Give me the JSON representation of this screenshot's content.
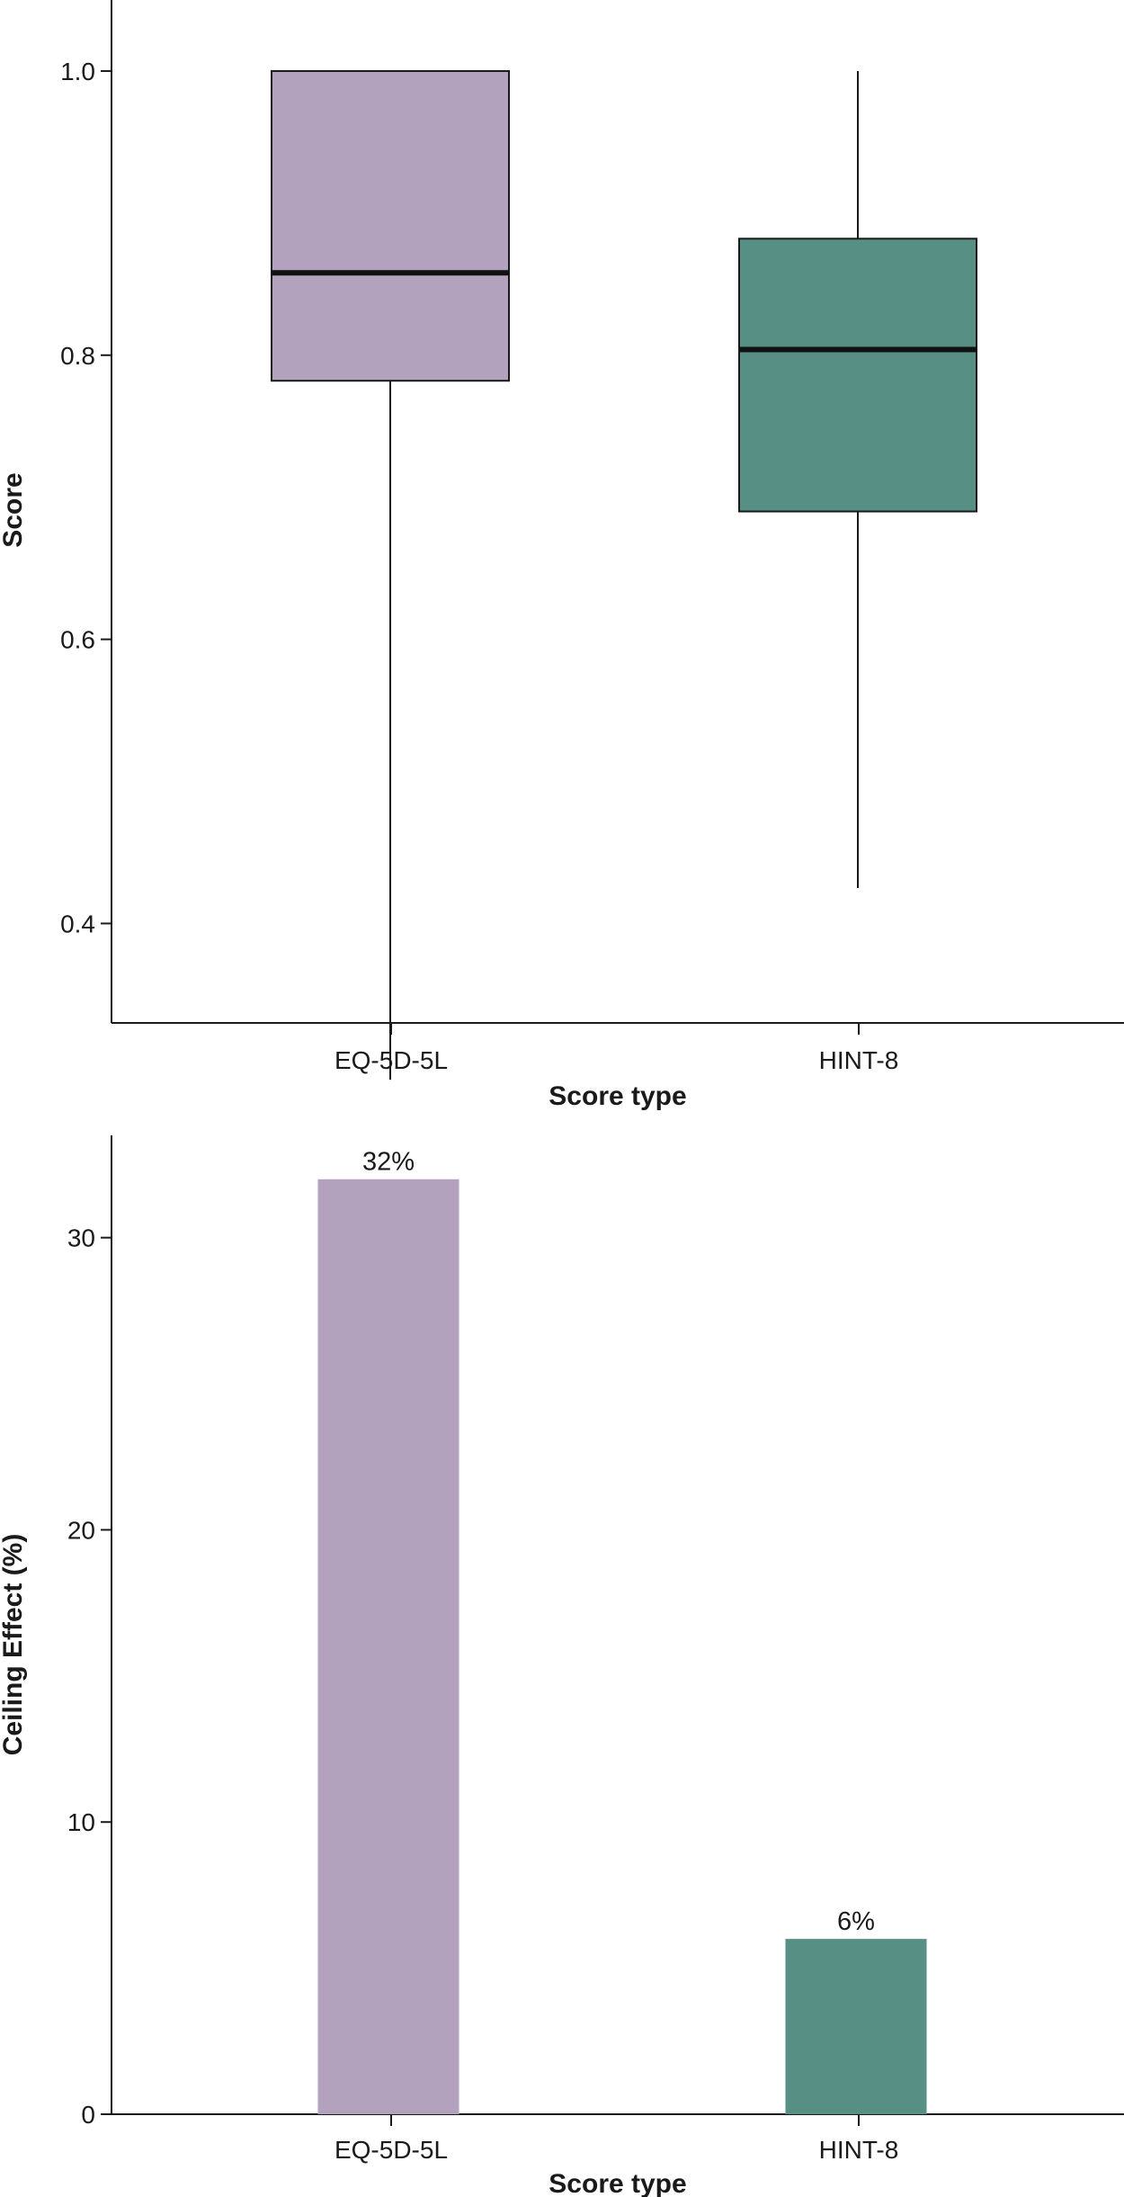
{
  "chart_data": [
    {
      "type": "box",
      "xlabel": "Score type",
      "ylabel": "Score",
      "ylim": [
        0.33,
        1.05
      ],
      "yticks": [
        0.4,
        0.6,
        0.8,
        1.0
      ],
      "ytick_labels": [
        "0.4",
        "0.6",
        "0.8",
        "1.0"
      ],
      "categories": [
        "EQ-5D-5L",
        "HINT-8"
      ],
      "boxes": [
        {
          "category": "EQ-5D-5L",
          "whisker_low": 0.29,
          "q1": 0.782,
          "median": 0.858,
          "q3": 1.0,
          "whisker_high": 1.0,
          "color": "#b3a2bd"
        },
        {
          "category": "HINT-8",
          "whisker_low": 0.425,
          "q1": 0.69,
          "median": 0.804,
          "q3": 0.882,
          "whisker_high": 1.0,
          "color": "#578f84"
        }
      ],
      "grid": false
    },
    {
      "type": "bar",
      "xlabel": "Score type",
      "ylabel": "Ceiling Effect (%)",
      "ylim": [
        0,
        33.5
      ],
      "yticks": [
        0,
        10,
        20,
        30
      ],
      "ytick_labels": [
        "0",
        "10",
        "20",
        "30"
      ],
      "categories": [
        "EQ-5D-5L",
        "HINT-8"
      ],
      "values": [
        32,
        6
      ],
      "data_labels": [
        "32%",
        "6%"
      ],
      "colors": [
        "#b3a2bd",
        "#578f84"
      ],
      "grid": false
    }
  ]
}
